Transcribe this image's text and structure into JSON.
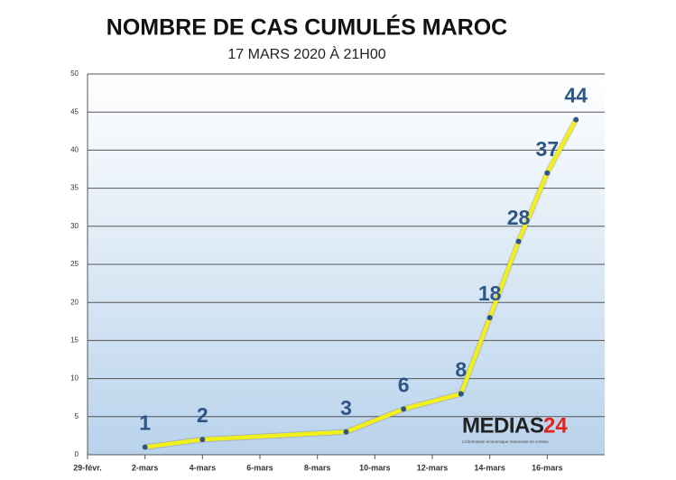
{
  "chart_data": {
    "type": "line",
    "title": "NOMBRE DE CAS CUMULÉS  MAROC",
    "subtitle": "17 MARS 2020 À 21H00",
    "x": [
      "2020-03-02",
      "2020-03-04",
      "2020-03-09",
      "2020-03-11",
      "2020-03-13",
      "2020-03-14",
      "2020-03-15",
      "2020-03-16",
      "2020-03-17"
    ],
    "series": [
      {
        "name": "Cas cumulés",
        "color": "#f2f01e",
        "values": [
          1,
          2,
          3,
          6,
          8,
          18,
          28,
          37,
          44
        ]
      }
    ],
    "xlim": [
      "2020-02-29",
      "2020-03-18"
    ],
    "xticks": [
      {
        "value": "2020-02-29",
        "label": "29-févr."
      },
      {
        "value": "2020-03-02",
        "label": "2-mars"
      },
      {
        "value": "2020-03-04",
        "label": "4-mars"
      },
      {
        "value": "2020-03-06",
        "label": "6-mars"
      },
      {
        "value": "2020-03-08",
        "label": "8-mars"
      },
      {
        "value": "2020-03-10",
        "label": "10-mars"
      },
      {
        "value": "2020-03-12",
        "label": "12-mars"
      },
      {
        "value": "2020-03-14",
        "label": "14-mars"
      },
      {
        "value": "2020-03-16",
        "label": "16-mars"
      }
    ],
    "ylim": [
      0,
      50
    ],
    "yticks": [
      0,
      5,
      10,
      15,
      20,
      25,
      30,
      35,
      40,
      45,
      50
    ],
    "grid": true,
    "logo": {
      "name": "MEDIAS",
      "number": "24",
      "tagline": "L'information économique marocaine en continu"
    }
  }
}
